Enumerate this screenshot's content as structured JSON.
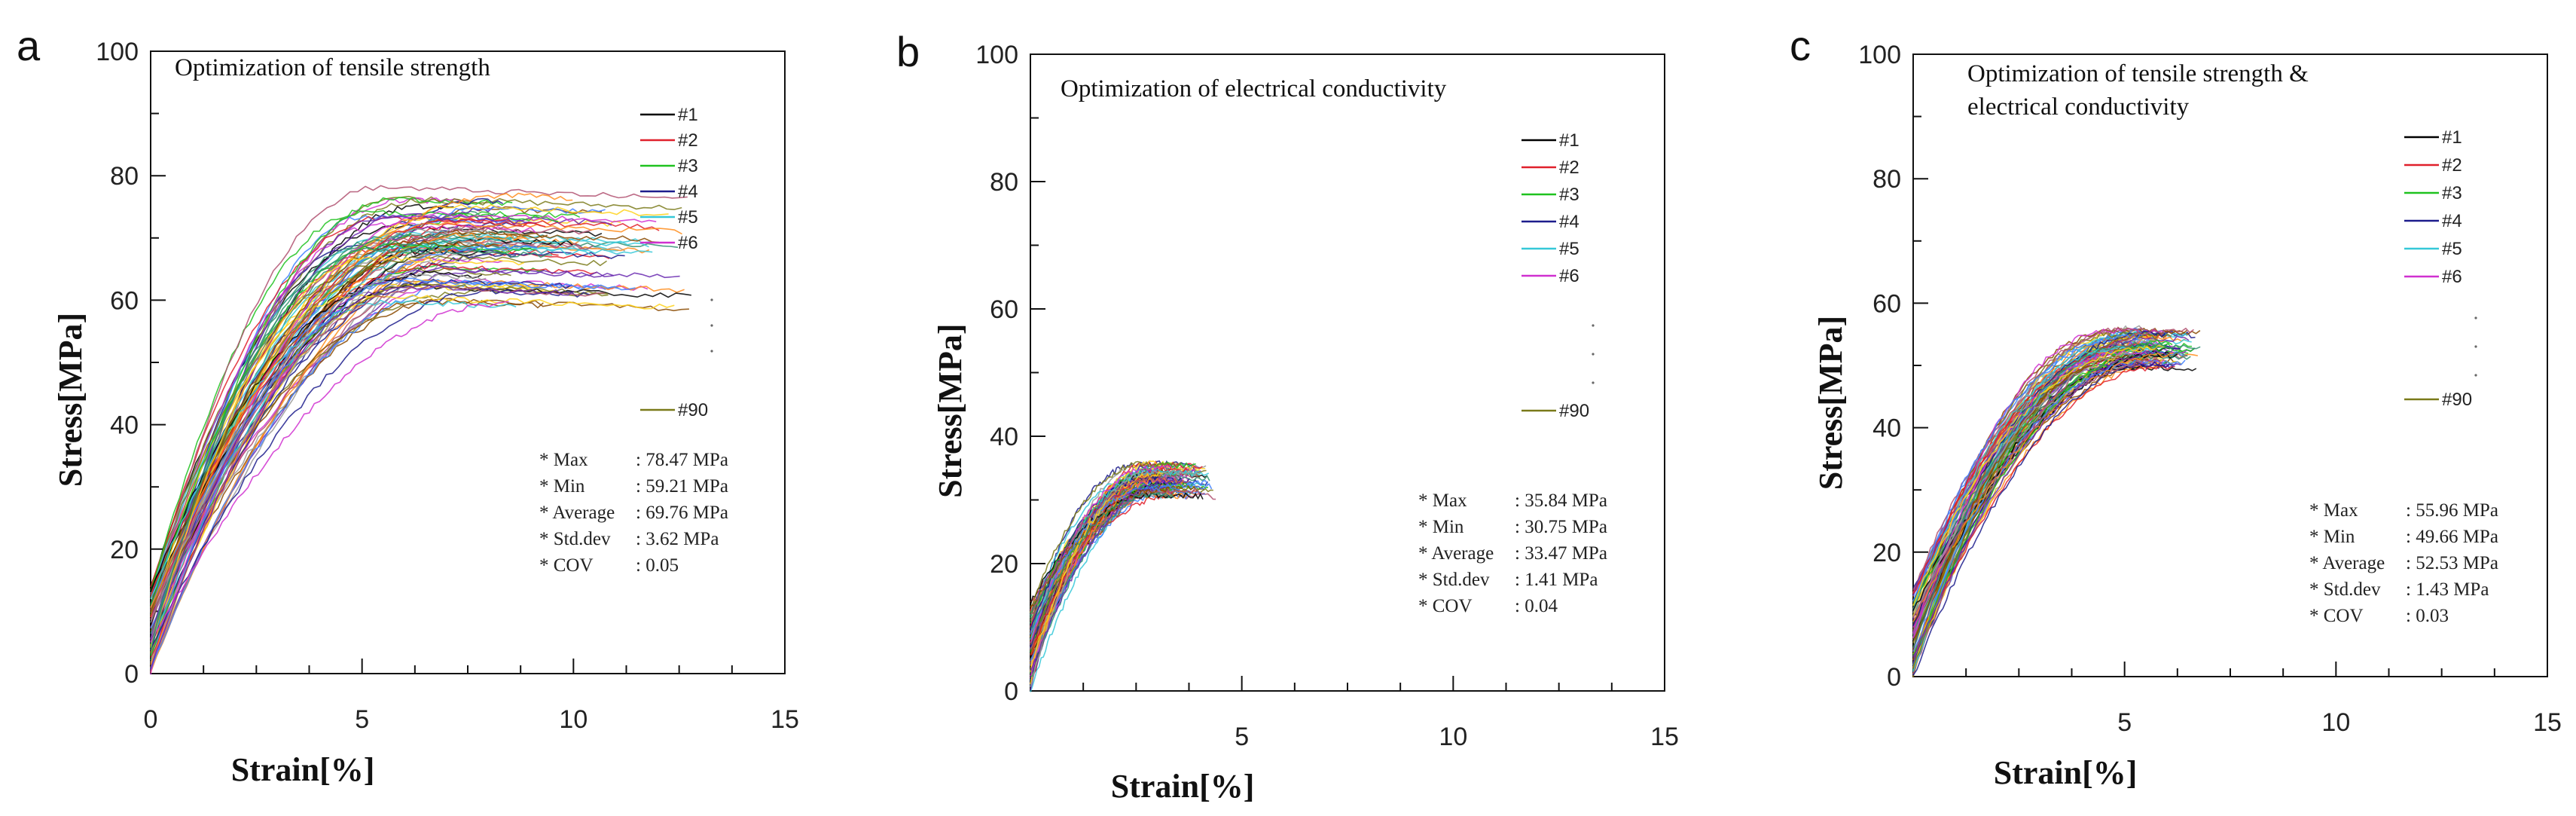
{
  "chart_data": [
    {
      "panel": "a",
      "type": "line",
      "title": [
        "Optimization of tensile strength"
      ],
      "xlabel": "Strain[%]",
      "ylabel": "Stress[MPa]",
      "xlim": [
        0,
        15
      ],
      "ylim": [
        0,
        100
      ],
      "xticks": [
        0,
        5,
        10,
        15
      ],
      "yticks": [
        0,
        20,
        40,
        60,
        80,
        100
      ],
      "legend": [
        "#1",
        "#2",
        "#3",
        "#4",
        "#5",
        "#6",
        "#90"
      ],
      "legend_placement": "right",
      "stats": [
        {
          "label": "Max",
          "value": ": 78.47 MPa"
        },
        {
          "label": "Min",
          "value": ": 59.21 MPa"
        },
        {
          "label": "Average",
          "value": ": 69.76 MPa"
        },
        {
          "label": "Std.dev",
          "value": ": 3.62 MPa"
        },
        {
          "label": "COV",
          "value": ": 0.05"
        }
      ],
      "n_curves": 90,
      "max_stress": 78.47,
      "min_stress": 59.21,
      "strain_at_peak_range": [
        5.0,
        8.5
      ],
      "failure_strain_range": [
        7.0,
        12.8
      ]
    },
    {
      "panel": "b",
      "type": "line",
      "title": [
        "Optimization of electrical conductivity"
      ],
      "xlabel": "Strain[%]",
      "ylabel": "Stress[MPa]",
      "xlim": [
        0,
        15
      ],
      "ylim": [
        0,
        100
      ],
      "xticks": [
        5,
        10,
        15
      ],
      "yticks": [
        0,
        20,
        40,
        60,
        80,
        100
      ],
      "legend": [
        "#1",
        "#2",
        "#3",
        "#4",
        "#5",
        "#6",
        "#90"
      ],
      "legend_placement": "right",
      "stats": [
        {
          "label": "Max",
          "value": ": 35.84 MPa"
        },
        {
          "label": "Min",
          "value": ": 30.75 MPa"
        },
        {
          "label": "Average",
          "value": ": 33.47 MPa"
        },
        {
          "label": "Std.dev",
          "value": ": 1.41 MPa"
        },
        {
          "label": "COV",
          "value": ": 0.04"
        }
      ],
      "n_curves": 90,
      "max_stress": 35.84,
      "min_stress": 30.75,
      "strain_at_peak_range": [
        2.6,
        3.4
      ],
      "failure_strain_range": [
        3.0,
        4.4
      ]
    },
    {
      "panel": "c",
      "type": "line",
      "title": [
        "Optimization of tensile strength &",
        "electrical conductivity"
      ],
      "xlabel": "Strain[%]",
      "ylabel": "Stress[MPa]",
      "xlim": [
        0,
        15
      ],
      "ylim": [
        0,
        100
      ],
      "xticks": [
        5,
        10,
        15
      ],
      "yticks": [
        0,
        20,
        40,
        60,
        80,
        100
      ],
      "legend": [
        "#1",
        "#2",
        "#3",
        "#4",
        "#5",
        "#6",
        "#90"
      ],
      "legend_placement": "right",
      "stats": [
        {
          "label": "Max",
          "value": ": 55.96 MPa"
        },
        {
          "label": "Min",
          "value": ": 49.66 MPa"
        },
        {
          "label": "Average",
          "value": ": 52.53 MPa"
        },
        {
          "label": "Std.dev",
          "value": ": 1.43 MPa"
        },
        {
          "label": "COV",
          "value": ": 0.03"
        }
      ],
      "n_curves": 90,
      "max_stress": 55.96,
      "min_stress": 49.66,
      "strain_at_peak_range": [
        4.8,
        6.0
      ],
      "failure_strain_range": [
        5.2,
        6.8
      ]
    }
  ],
  "series_colors": [
    "#000000",
    "#e0202b",
    "#1fc21f",
    "#1c1c8c",
    "#35c8d8",
    "#d030d0",
    "#7a7a1a",
    "#8a4a00",
    "#4080ff",
    "#ff8c1a",
    "#9a9a9a",
    "#ffd21a",
    "#2f8f6f",
    "#b05070",
    "#6a2ab0"
  ]
}
